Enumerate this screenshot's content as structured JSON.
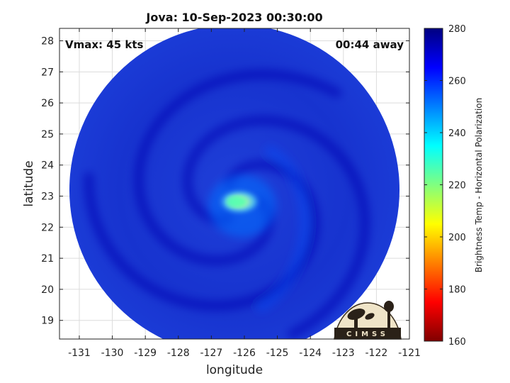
{
  "chart_data": {
    "type": "heatmap",
    "title": "Jova: 10-Sep-2023 00:30:00",
    "xlabel": "longitude",
    "ylabel": "latitude",
    "xlim": [
      -131.6,
      -121
    ],
    "ylim": [
      18.4,
      28.4
    ],
    "xticks": [
      -131,
      -130,
      -129,
      -128,
      -127,
      -126,
      -125,
      -124,
      -123,
      -122,
      -121
    ],
    "yticks": [
      19,
      20,
      21,
      22,
      23,
      24,
      25,
      26,
      27,
      28
    ],
    "grid": true,
    "annotations": {
      "top_left": "Vmax: 45 kts",
      "top_right": "00:44 away"
    },
    "data_region": {
      "center": [
        -126.3,
        23.2
      ],
      "radius_deg": 5.0,
      "fill_value": 266
    },
    "features": [
      {
        "kind": "warm-core",
        "center": [
          -126.15,
          22.82
        ],
        "value": 226
      },
      {
        "kind": "inner-ring",
        "center": [
          -126.1,
          22.9
        ],
        "value": 252
      },
      {
        "kind": "cold-band",
        "value": 268
      }
    ],
    "colorbar": {
      "label": "Brightness Temp - Horizontal Polarization",
      "min": 160,
      "max": 280,
      "ticks": [
        160,
        180,
        200,
        220,
        240,
        260,
        280
      ],
      "colormap": [
        "#800000",
        "#ff0000",
        "#ff8000",
        "#ffff00",
        "#80ff80",
        "#00ffff",
        "#0080ff",
        "#0000ff",
        "#000080"
      ]
    },
    "logo": {
      "text": "CIMSS"
    }
  }
}
